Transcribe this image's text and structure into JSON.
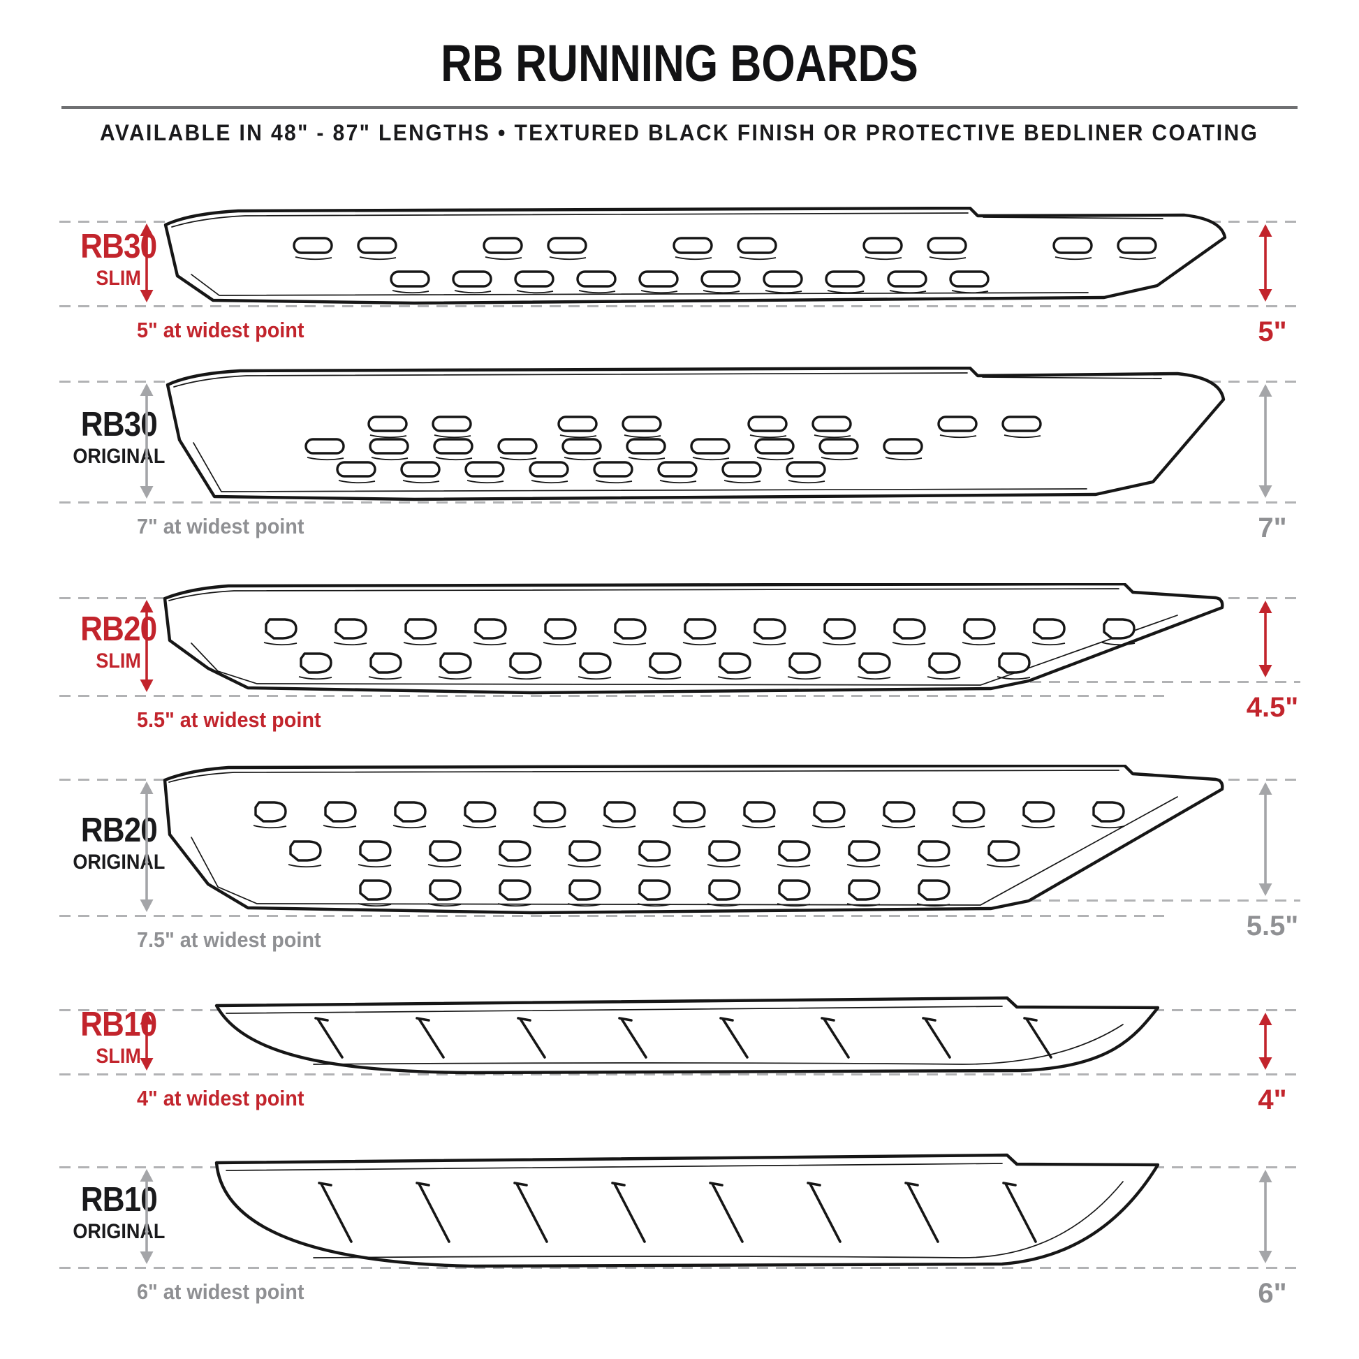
{
  "header": {
    "title": "RB RUNNING BOARDS",
    "subtitle": "AVAILABLE IN 48\" - 87\" LENGTHS  •  TEXTURED BLACK FINISH OR PROTECTIVE BEDLINER COATING"
  },
  "colors": {
    "accent_red": "#c2242c",
    "label_black": "#1a1a1c",
    "neutral_gray_text": "#8f9093",
    "neutral_gray_arrow": "#a4a5a8",
    "dash_gray": "#b1b2b4",
    "line_black": "#161616"
  },
  "rows": [
    {
      "model": "RB30",
      "variant": "SLIM",
      "style": "red",
      "board_family": "RB30",
      "tread_pattern": "oval-slots",
      "widest_label": "5\" at widest point",
      "height_label": "5\""
    },
    {
      "model": "RB30",
      "variant": "ORIGINAL",
      "style": "gray",
      "board_family": "RB30",
      "tread_pattern": "oval-slots",
      "widest_label": "7\" at widest point",
      "height_label": "7\""
    },
    {
      "model": "RB20",
      "variant": "SLIM",
      "style": "red",
      "board_family": "RB20",
      "tread_pattern": "d-shaped-holes",
      "widest_label": "5.5\" at widest point",
      "height_label": "4.5\""
    },
    {
      "model": "RB20",
      "variant": "ORIGINAL",
      "style": "gray",
      "board_family": "RB20",
      "tread_pattern": "d-shaped-holes",
      "widest_label": "7.5\" at widest point",
      "height_label": "5.5\""
    },
    {
      "model": "RB10",
      "variant": "SLIM",
      "style": "red",
      "board_family": "RB10",
      "tread_pattern": "diagonal-slashes",
      "widest_label": "4\" at widest point",
      "height_label": "4\""
    },
    {
      "model": "RB10",
      "variant": "ORIGINAL",
      "style": "gray",
      "board_family": "RB10",
      "tread_pattern": "diagonal-slashes",
      "widest_label": "6\" at widest point",
      "height_label": "6\""
    }
  ]
}
